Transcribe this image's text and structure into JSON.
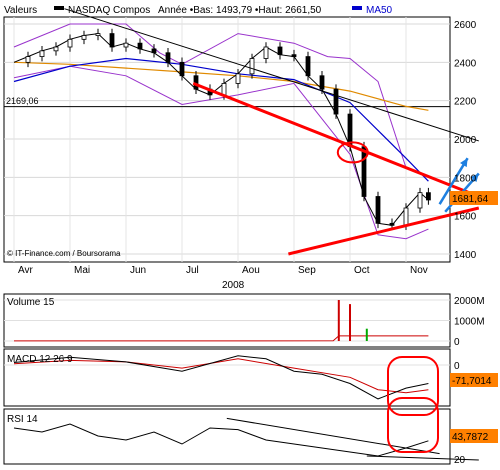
{
  "header": {
    "valeurs_label": "Valeurs",
    "series_name": "NASDAQ Compos",
    "info": "Année •Bas: 1493,79 •Haut: 2661,50",
    "ma_label": "MA50",
    "ma_color": "#0000cc"
  },
  "source": "© IT-Finance.com / Boursorama",
  "year_label": "2008",
  "chart_data": [
    {
      "type": "line",
      "title": "NASDAQ Compos",
      "subtype": "candlestick with Bollinger bands and moving averages",
      "x_labels": [
        "Avr",
        "Mai",
        "Jun",
        "Jul",
        "Aou",
        "Sep",
        "Oct",
        "Nov"
      ],
      "y_ticks": [
        1400,
        1600,
        1800,
        2000,
        2200,
        2400,
        2600
      ],
      "ylim": [
        1380,
        2680
      ],
      "grid": true,
      "hline": {
        "value": 2169.06,
        "label": "2169,06"
      },
      "last_value": {
        "value": 1681.64,
        "label": "1681,64",
        "color": "#ff8000"
      },
      "price": [
        {
          "x": 0,
          "y": 2400
        },
        {
          "x": 0.25,
          "y": 2430
        },
        {
          "x": 0.5,
          "y": 2460
        },
        {
          "x": 0.75,
          "y": 2480
        },
        {
          "x": 1,
          "y": 2520
        },
        {
          "x": 1.25,
          "y": 2540
        },
        {
          "x": 1.5,
          "y": 2550
        },
        {
          "x": 1.75,
          "y": 2480
        },
        {
          "x": 2,
          "y": 2500
        },
        {
          "x": 2.25,
          "y": 2470
        },
        {
          "x": 2.5,
          "y": 2450
        },
        {
          "x": 2.75,
          "y": 2400
        },
        {
          "x": 3,
          "y": 2330
        },
        {
          "x": 3.25,
          "y": 2260
        },
        {
          "x": 3.5,
          "y": 2230
        },
        {
          "x": 3.75,
          "y": 2290
        },
        {
          "x": 4,
          "y": 2340
        },
        {
          "x": 4.25,
          "y": 2420
        },
        {
          "x": 4.5,
          "y": 2480
        },
        {
          "x": 4.75,
          "y": 2440
        },
        {
          "x": 5,
          "y": 2430
        },
        {
          "x": 5.25,
          "y": 2330
        },
        {
          "x": 5.5,
          "y": 2260
        },
        {
          "x": 5.75,
          "y": 2130
        },
        {
          "x": 6,
          "y": 1960
        },
        {
          "x": 6.25,
          "y": 1700
        },
        {
          "x": 6.5,
          "y": 1560
        },
        {
          "x": 6.75,
          "y": 1550
        },
        {
          "x": 7,
          "y": 1640
        },
        {
          "x": 7.25,
          "y": 1720
        },
        {
          "x": 7.4,
          "y": 1682
        }
      ],
      "ma50": [
        {
          "x": 0,
          "y": 2300
        },
        {
          "x": 1,
          "y": 2380
        },
        {
          "x": 2,
          "y": 2420
        },
        {
          "x": 3,
          "y": 2390
        },
        {
          "x": 4,
          "y": 2340
        },
        {
          "x": 5,
          "y": 2310
        },
        {
          "x": 6,
          "y": 2190
        },
        {
          "x": 7,
          "y": 1900
        },
        {
          "x": 7.4,
          "y": 1780
        }
      ],
      "ma200": [
        {
          "x": 0,
          "y": 2400
        },
        {
          "x": 1,
          "y": 2390
        },
        {
          "x": 2,
          "y": 2370
        },
        {
          "x": 3,
          "y": 2350
        },
        {
          "x": 4,
          "y": 2330
        },
        {
          "x": 5,
          "y": 2300
        },
        {
          "x": 6,
          "y": 2250
        },
        {
          "x": 7,
          "y": 2170
        },
        {
          "x": 7.4,
          "y": 2150
        }
      ],
      "bollinger_upper": [
        {
          "x": 0,
          "y": 2480
        },
        {
          "x": 1,
          "y": 2600
        },
        {
          "x": 2,
          "y": 2600
        },
        {
          "x": 2.6,
          "y": 2450
        },
        {
          "x": 3,
          "y": 2390
        },
        {
          "x": 4,
          "y": 2550
        },
        {
          "x": 5,
          "y": 2500
        },
        {
          "x": 5.6,
          "y": 2430
        },
        {
          "x": 6,
          "y": 2420
        },
        {
          "x": 6.5,
          "y": 2300
        },
        {
          "x": 7,
          "y": 1850
        },
        {
          "x": 7.4,
          "y": 1800
        }
      ],
      "bollinger_lower": [
        {
          "x": 0,
          "y": 2320
        },
        {
          "x": 1,
          "y": 2380
        },
        {
          "x": 2,
          "y": 2330
        },
        {
          "x": 3,
          "y": 2180
        },
        {
          "x": 4,
          "y": 2230
        },
        {
          "x": 5,
          "y": 2290
        },
        {
          "x": 6,
          "y": 1920
        },
        {
          "x": 6.5,
          "y": 1500
        },
        {
          "x": 7,
          "y": 1480
        },
        {
          "x": 7.4,
          "y": 1530
        }
      ],
      "trend_lines": [
        {
          "color": "#ff0000",
          "from": {
            "x": 3.2,
            "y": 2290
          },
          "to": {
            "x": 8.3,
            "y": 1700
          }
        },
        {
          "color": "#ff0000",
          "from": {
            "x": 4.9,
            "y": 1400
          },
          "to": {
            "x": 8.3,
            "y": 1640
          }
        },
        {
          "color": "#000000",
          "from": {
            "x": 0.9,
            "y": 2680
          },
          "to": {
            "x": 8.3,
            "y": 1990
          }
        }
      ],
      "arrows": [
        {
          "color": "#1e7fe0",
          "from": {
            "x": 7.6,
            "y": 1660
          },
          "to": {
            "x": 8.1,
            "y": 1900
          }
        },
        {
          "color": "#1e7fe0",
          "from": {
            "x": 7.7,
            "y": 1620
          },
          "to": {
            "x": 8.3,
            "y": 1820
          }
        }
      ],
      "circle": {
        "x": 6.05,
        "y": 1930
      }
    },
    {
      "type": "bar",
      "title": "Volume 15",
      "y_ticks": [
        "0",
        "1000M",
        "2000M"
      ],
      "bars": [
        {
          "x": 5.8,
          "y": 2000
        },
        {
          "x": 6.0,
          "y": 1800
        },
        {
          "x": 6.3,
          "y": 600
        }
      ],
      "avg": [
        {
          "x": 0,
          "y": 5
        },
        {
          "x": 4.3,
          "y": 5
        },
        {
          "x": 5.7,
          "y": 10
        },
        {
          "x": 5.8,
          "y": 250
        },
        {
          "x": 7.4,
          "y": 250
        }
      ]
    },
    {
      "type": "line",
      "title": "MACD 12 26 9",
      "y_ticks": [
        "0"
      ],
      "last_value": {
        "label": "-71,7014"
      },
      "macd": [
        {
          "x": 0,
          "y": 8
        },
        {
          "x": 1,
          "y": 25
        },
        {
          "x": 2,
          "y": 10
        },
        {
          "x": 3,
          "y": -20
        },
        {
          "x": 4,
          "y": 30
        },
        {
          "x": 4.5,
          "y": 20
        },
        {
          "x": 5,
          "y": -20
        },
        {
          "x": 5.5,
          "y": -30
        },
        {
          "x": 6,
          "y": -60
        },
        {
          "x": 6.5,
          "y": -110
        },
        {
          "x": 7,
          "y": -75
        },
        {
          "x": 7.4,
          "y": -60
        }
      ],
      "signal": [
        {
          "x": 0,
          "y": 4
        },
        {
          "x": 1,
          "y": 15
        },
        {
          "x": 2,
          "y": 10
        },
        {
          "x": 3,
          "y": -10
        },
        {
          "x": 4,
          "y": 20
        },
        {
          "x": 5,
          "y": -10
        },
        {
          "x": 6,
          "y": -40
        },
        {
          "x": 6.5,
          "y": -80
        },
        {
          "x": 7,
          "y": -90
        },
        {
          "x": 7.4,
          "y": -80
        }
      ]
    },
    {
      "type": "line",
      "title": "RSI 14",
      "y_ticks": [
        "20"
      ],
      "last_value": {
        "label": "43,7872"
      },
      "rsi": [
        {
          "x": 0,
          "y": 60
        },
        {
          "x": 0.5,
          "y": 55
        },
        {
          "x": 1,
          "y": 65
        },
        {
          "x": 1.5,
          "y": 50
        },
        {
          "x": 2,
          "y": 45
        },
        {
          "x": 2.5,
          "y": 55
        },
        {
          "x": 3,
          "y": 40
        },
        {
          "x": 3.5,
          "y": 60
        },
        {
          "x": 4,
          "y": 58
        },
        {
          "x": 4.5,
          "y": 45
        },
        {
          "x": 5,
          "y": 40
        },
        {
          "x": 5.5,
          "y": 35
        },
        {
          "x": 6,
          "y": 30
        },
        {
          "x": 6.5,
          "y": 25
        },
        {
          "x": 7,
          "y": 35
        },
        {
          "x": 7.4,
          "y": 44
        }
      ],
      "trend_lines": [
        {
          "color": "#000000",
          "from": {
            "x": 3.8,
            "y": 72
          },
          "to": {
            "x": 7.6,
            "y": 28
          }
        },
        {
          "color": "#000000",
          "from": {
            "x": 6.3,
            "y": 25
          },
          "to": {
            "x": 8.3,
            "y": 20
          }
        }
      ]
    }
  ]
}
